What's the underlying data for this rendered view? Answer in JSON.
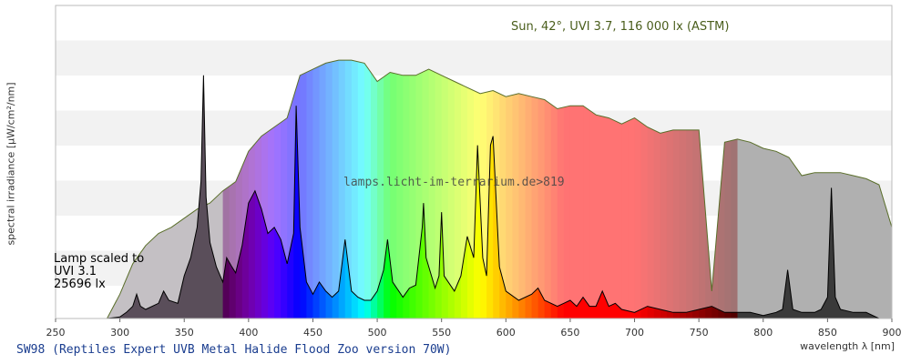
{
  "chart_data": {
    "type": "area",
    "title": "SW98 (Reptiles Expert UVB Metal Halide Flood Zoo version 70W)",
    "xlabel": "wavelength λ [nm]",
    "ylabel": "spectral irradiance [μW/cm²/nm]",
    "xlim": [
      250,
      900
    ],
    "x_ticks": [
      250,
      300,
      350,
      400,
      450,
      500,
      550,
      600,
      650,
      700,
      750,
      800,
      850,
      900
    ],
    "grid": "horizontal bands",
    "watermark": "lamps.licht-im-terrarium.de>819",
    "series": [
      {
        "name": "Sun, 42°, UVI 3.7, 116 000 lx (ASTM)",
        "color": "#5a6e2a",
        "x": [
          290,
          300,
          310,
          320,
          330,
          340,
          350,
          360,
          370,
          380,
          390,
          400,
          410,
          420,
          430,
          440,
          450,
          460,
          470,
          480,
          490,
          500,
          510,
          520,
          530,
          540,
          550,
          560,
          570,
          580,
          590,
          600,
          610,
          620,
          630,
          640,
          650,
          660,
          670,
          680,
          690,
          700,
          710,
          720,
          730,
          740,
          750,
          760,
          770,
          780,
          790,
          800,
          810,
          820,
          830,
          840,
          850,
          860,
          870,
          880,
          890,
          900
        ],
        "y": [
          0,
          0.08,
          0.18,
          0.24,
          0.28,
          0.3,
          0.33,
          0.36,
          0.38,
          0.42,
          0.45,
          0.55,
          0.6,
          0.63,
          0.66,
          0.8,
          0.82,
          0.84,
          0.85,
          0.85,
          0.84,
          0.78,
          0.81,
          0.8,
          0.8,
          0.82,
          0.8,
          0.78,
          0.76,
          0.74,
          0.75,
          0.73,
          0.74,
          0.73,
          0.72,
          0.69,
          0.7,
          0.7,
          0.67,
          0.66,
          0.64,
          0.66,
          0.63,
          0.61,
          0.62,
          0.62,
          0.62,
          0.09,
          0.58,
          0.59,
          0.58,
          0.56,
          0.55,
          0.53,
          0.47,
          0.48,
          0.48,
          0.48,
          0.47,
          0.46,
          0.44,
          0.3
        ]
      },
      {
        "name": "Lamp scaled to UVI 3.1",
        "color": "#000000",
        "x": [
          290,
          300,
          305,
          310,
          313,
          316,
          320,
          330,
          334,
          338,
          345,
          350,
          355,
          360,
          363,
          365,
          367,
          370,
          375,
          380,
          383,
          387,
          390,
          395,
          400,
          405,
          410,
          415,
          420,
          425,
          430,
          435,
          437,
          440,
          445,
          450,
          455,
          460,
          465,
          470,
          475,
          480,
          485,
          490,
          495,
          500,
          505,
          508,
          512,
          520,
          525,
          530,
          535,
          536,
          538,
          545,
          548,
          550,
          552,
          560,
          565,
          570,
          575,
          578,
          582,
          585,
          588,
          590,
          595,
          600,
          610,
          620,
          625,
          630,
          640,
          645,
          650,
          655,
          660,
          665,
          670,
          675,
          680,
          685,
          690,
          700,
          710,
          720,
          730,
          740,
          750,
          760,
          770,
          780,
          790,
          800,
          810,
          815,
          819,
          823,
          830,
          840,
          845,
          850,
          853,
          856,
          860,
          870,
          880,
          890
        ],
        "y": [
          0,
          0.005,
          0.02,
          0.04,
          0.08,
          0.04,
          0.03,
          0.05,
          0.09,
          0.06,
          0.05,
          0.14,
          0.2,
          0.3,
          0.45,
          0.8,
          0.4,
          0.25,
          0.17,
          0.12,
          0.2,
          0.17,
          0.15,
          0.24,
          0.38,
          0.42,
          0.36,
          0.28,
          0.3,
          0.26,
          0.18,
          0.28,
          0.7,
          0.3,
          0.12,
          0.08,
          0.12,
          0.09,
          0.07,
          0.09,
          0.26,
          0.09,
          0.07,
          0.06,
          0.06,
          0.09,
          0.16,
          0.26,
          0.12,
          0.07,
          0.1,
          0.11,
          0.3,
          0.38,
          0.2,
          0.1,
          0.14,
          0.35,
          0.14,
          0.09,
          0.14,
          0.27,
          0.2,
          0.57,
          0.2,
          0.14,
          0.57,
          0.6,
          0.17,
          0.09,
          0.06,
          0.08,
          0.1,
          0.06,
          0.04,
          0.05,
          0.06,
          0.04,
          0.07,
          0.04,
          0.04,
          0.09,
          0.04,
          0.05,
          0.03,
          0.02,
          0.04,
          0.03,
          0.02,
          0.02,
          0.03,
          0.04,
          0.02,
          0.02,
          0.02,
          0.01,
          0.02,
          0.03,
          0.16,
          0.03,
          0.02,
          0.02,
          0.03,
          0.07,
          0.43,
          0.07,
          0.03,
          0.02,
          0.02,
          0
        ]
      }
    ],
    "lamp_note": [
      "Lamp scaled to",
      "UVI 3.1",
      "25696 lx"
    ]
  }
}
